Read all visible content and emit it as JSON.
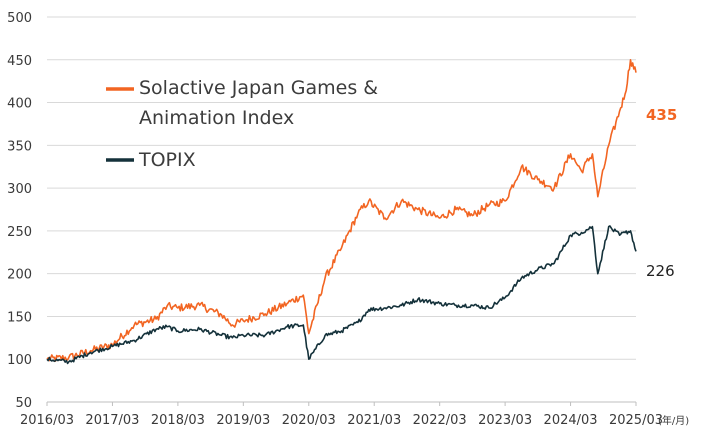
{
  "chart_data": {
    "type": "line",
    "title": "",
    "xlabel": "",
    "ylabel": "",
    "x_unit_label": "(年/月)",
    "ylim": [
      50,
      500
    ],
    "yticks": [
      50,
      100,
      150,
      200,
      250,
      300,
      350,
      400,
      450,
      500
    ],
    "xticks": [
      "2016/03",
      "2017/03",
      "2018/03",
      "2019/03",
      "2020/03",
      "2021/03",
      "2022/03",
      "2023/03",
      "2024/03",
      "2025/03"
    ],
    "grid": true,
    "legend_position": "upper-left",
    "series": [
      {
        "name": "Solactive Japan Games & Animation Index",
        "legend_lines": [
          "Solactive Japan Games &",
          "Animation Index"
        ],
        "color": "#f26522",
        "end_label": "435",
        "x": [
          "2016/03",
          "2016/07",
          "2016/11",
          "2017/03",
          "2017/07",
          "2017/11",
          "2018/01",
          "2018/03",
          "2018/07",
          "2018/11",
          "2019/01",
          "2019/03",
          "2019/07",
          "2019/11",
          "2020/02",
          "2020/03",
          "2020/06",
          "2020/09",
          "2020/12",
          "2021/02",
          "2021/05",
          "2021/08",
          "2021/11",
          "2022/03",
          "2022/06",
          "2022/09",
          "2022/12",
          "2023/03",
          "2023/06",
          "2023/09",
          "2023/12",
          "2024/03",
          "2024/05",
          "2024/07",
          "2024/08",
          "2024/10",
          "2024/12",
          "2025/01",
          "2025/02",
          "2025/03"
        ],
        "values": [
          100,
          102,
          110,
          117,
          140,
          147,
          162,
          160,
          163,
          152,
          140,
          145,
          153,
          165,
          175,
          130,
          195,
          230,
          270,
          285,
          265,
          285,
          275,
          265,
          275,
          268,
          280,
          285,
          325,
          310,
          300,
          340,
          320,
          340,
          290,
          350,
          390,
          410,
          450,
          435
        ]
      },
      {
        "name": "TOPIX",
        "legend_lines": [
          "TOPIX"
        ],
        "color": "#14313a",
        "end_label": "226",
        "x": [
          "2016/03",
          "2016/07",
          "2016/11",
          "2017/03",
          "2017/07",
          "2017/11",
          "2018/01",
          "2018/03",
          "2018/07",
          "2018/11",
          "2019/01",
          "2019/03",
          "2019/07",
          "2019/11",
          "2020/02",
          "2020/03",
          "2020/06",
          "2020/09",
          "2020/12",
          "2021/02",
          "2021/05",
          "2021/08",
          "2021/11",
          "2022/03",
          "2022/06",
          "2022/09",
          "2022/12",
          "2023/03",
          "2023/06",
          "2023/09",
          "2023/12",
          "2024/03",
          "2024/05",
          "2024/07",
          "2024/08",
          "2024/10",
          "2024/12",
          "2025/01",
          "2025/02",
          "2025/03"
        ],
        "values": [
          100,
          97,
          108,
          115,
          122,
          135,
          138,
          133,
          135,
          128,
          125,
          128,
          128,
          138,
          140,
          100,
          128,
          133,
          143,
          158,
          160,
          163,
          170,
          165,
          163,
          163,
          160,
          172,
          195,
          205,
          212,
          245,
          248,
          255,
          200,
          255,
          245,
          248,
          250,
          226
        ]
      }
    ]
  }
}
